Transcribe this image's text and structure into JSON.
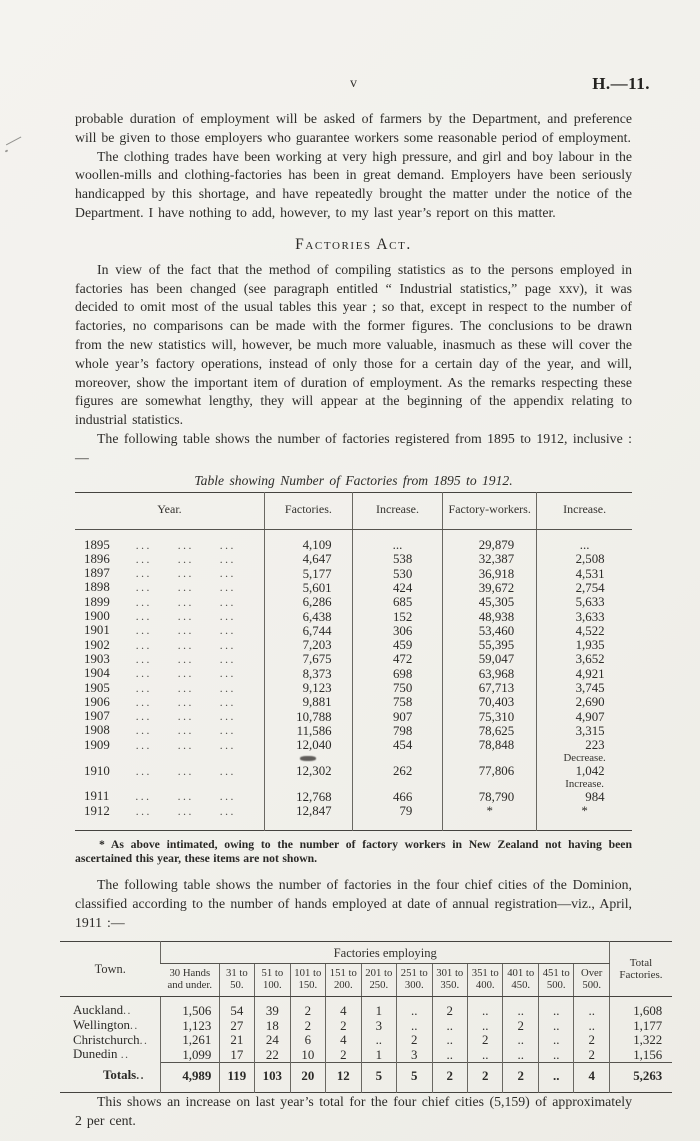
{
  "page": {
    "page_number": "v",
    "doc_ref": "H.—11."
  },
  "paragraphs": {
    "continuation": "probable duration of employment will be asked of farmers by the Department, and preference will be given to those employers who guarantee workers some reasonable period of employment.",
    "clothing": "The clothing trades have been working at very high pressure, and girl and boy labour in the woollen-mills and clothing-factories has been in great demand.  Employers have been seriously handicapped by this shortage, and have repeatedly brought the matter under the notice of the Department.  I have nothing to add, however, to my last year’s report on this matter.",
    "heading": "Factories Act.",
    "statistics": "In view of the fact that the method of compiling statistics as to the persons employed in factories has been changed (see paragraph entitled “ Industrial statistics,” page xxv), it was decided to omit most of the usual tables this year ; so that, except in respect to the number of factories, no comparisons can be made with the former figures.  The conclusions to be drawn from the new statistics will, however, be much more valuable, inasmuch as these will cover the whole year’s factory operations, instead of only those for a certain day of the year, and will, moreover, show the important item of duration of employment.  As the remarks respecting these figures are somewhat lengthy, they will appear at the beginning of the appendix relating to industrial statistics.",
    "table1_intro": "The following table shows the number of factories registered from 1895 to 1912, inclusive :—",
    "cities_intro": "The following table shows the number of factories in the four chief cities of the Dominion, classified according to the number of hands employed at date of annual registration—viz., April, 1911 :—",
    "closing": "This shows an increase on last year’s total for the four chief cities (5,159) of approximately 2 per cent."
  },
  "table1": {
    "caption": "Table showing Number of Factories from 1895 to 1912.",
    "headers": [
      "Year.",
      "Factories.",
      "Increase.",
      "Factory-workers.",
      "Increase."
    ],
    "dot_leader": "...",
    "rows": [
      {
        "year": "1895",
        "factories": "4,109",
        "increase": "...",
        "workers": "29,879",
        "workers_increase": "..."
      },
      {
        "year": "1896",
        "factories": "4,647",
        "increase": "538",
        "workers": "32,387",
        "workers_increase": "2,508"
      },
      {
        "year": "1897",
        "factories": "5,177",
        "increase": "530",
        "workers": "36,918",
        "workers_increase": "4,531"
      },
      {
        "year": "1898",
        "factories": "5,601",
        "increase": "424",
        "workers": "39,672",
        "workers_increase": "2,754"
      },
      {
        "year": "1899",
        "factories": "6,286",
        "increase": "685",
        "workers": "45,305",
        "workers_increase": "5,633"
      },
      {
        "year": "1900",
        "factories": "6,438",
        "increase": "152",
        "workers": "48,938",
        "workers_increase": "3,633"
      },
      {
        "year": "1901",
        "factories": "6,744",
        "increase": "306",
        "workers": "53,460",
        "workers_increase": "4,522"
      },
      {
        "year": "1902",
        "factories": "7,203",
        "increase": "459",
        "workers": "55,395",
        "workers_increase": "1,935"
      },
      {
        "year": "1903",
        "factories": "7,675",
        "increase": "472",
        "workers": "59,047",
        "workers_increase": "3,652"
      },
      {
        "year": "1904",
        "factories": "8,373",
        "increase": "698",
        "workers": "63,968",
        "workers_increase": "4,921"
      },
      {
        "year": "1905",
        "factories": "9,123",
        "increase": "750",
        "workers": "67,713",
        "workers_increase": "3,745"
      },
      {
        "year": "1906",
        "factories": "9,881",
        "increase": "758",
        "workers": "70,403",
        "workers_increase": "2,690"
      },
      {
        "year": "1907",
        "factories": "10,788",
        "increase": "907",
        "workers": "75,310",
        "workers_increase": "4,907"
      },
      {
        "year": "1908",
        "factories": "11,586",
        "increase": "798",
        "workers": "78,625",
        "workers_increase": "3,315"
      },
      {
        "year": "1909",
        "factories": "12,040",
        "increase": "454",
        "workers": "78,848",
        "workers_increase": "223"
      },
      {
        "note": "Decrease.",
        "smudge": true
      },
      {
        "year": "1910",
        "factories": "12,302",
        "increase": "262",
        "workers": "77,806",
        "workers_increase": "1,042"
      },
      {
        "note": "Increase."
      },
      {
        "year": "1911",
        "factories": "12,768",
        "increase": "466",
        "workers": "78,790",
        "workers_increase": "984"
      },
      {
        "year": "1912",
        "factories": "12,847",
        "increase": "79",
        "workers": "*",
        "workers_increase": "*"
      }
    ],
    "footnote": "* As above intimated, owing to the number of factory workers in New Zealand not having been ascertained this year, these items are not shown."
  },
  "table2": {
    "town_header": "Town.",
    "group_header": "Factories employing",
    "total_header": "Total\nFactories.",
    "col_headers": [
      "30 Hands\nand under.",
      "31 to\n50.",
      "51 to\n100.",
      "101 to\n150.",
      "151 to\n200.",
      "201 to\n250.",
      "251 to\n300.",
      "301 to\n350.",
      "351 to\n400.",
      "401 to\n450.",
      "451 to\n500.",
      "Over\n500."
    ],
    "town_dots": "..",
    "empty_cell": "..",
    "rows": [
      {
        "town": "Auckland",
        "values": [
          "1,506",
          "54",
          "39",
          "2",
          "4",
          "1",
          "..",
          "2",
          "..",
          "..",
          "..",
          ".."
        ],
        "total": "1,608"
      },
      {
        "town": "Wellington",
        "values": [
          "1,123",
          "27",
          "18",
          "2",
          "2",
          "3",
          "..",
          "..",
          "..",
          "2",
          "..",
          ".."
        ],
        "total": "1,177"
      },
      {
        "town": "Christchurch",
        "values": [
          "1,261",
          "21",
          "24",
          "6",
          "4",
          "..",
          "2",
          "..",
          "2",
          "..",
          "..",
          "2"
        ],
        "total": "1,322"
      },
      {
        "town": "Dunedin",
        "values": [
          "1,099",
          "17",
          "22",
          "10",
          "2",
          "1",
          "3",
          "..",
          "..",
          "..",
          "..",
          "2"
        ],
        "total": "1,156"
      }
    ],
    "totals": {
      "label": "Totals",
      "values": [
        "4,989",
        "119",
        "103",
        "20",
        "12",
        "5",
        "5",
        "2",
        "2",
        "2",
        "..",
        "4"
      ],
      "total": "5,263"
    }
  }
}
